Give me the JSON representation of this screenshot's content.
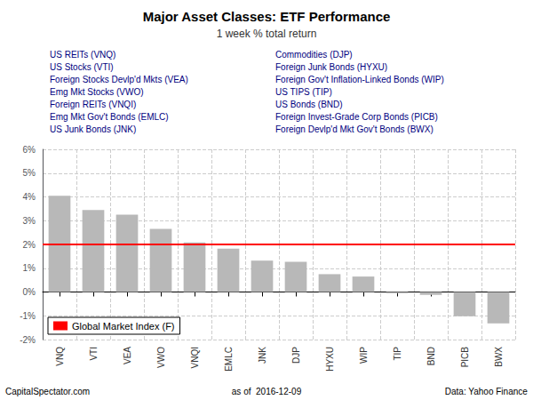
{
  "chart_data": {
    "type": "bar",
    "title": "Major Asset Classes: ETF Performance",
    "subtitle": "1 week % total return",
    "categories": [
      "VNQ",
      "VTI",
      "VEA",
      "VWO",
      "VNQI",
      "EMLC",
      "JNK",
      "DJP",
      "HYXU",
      "WIP",
      "TIP",
      "BND",
      "PICB",
      "BWX"
    ],
    "values": [
      4.05,
      3.45,
      3.25,
      2.65,
      2.08,
      1.82,
      1.32,
      1.27,
      0.75,
      0.65,
      -0.05,
      -0.12,
      -1.02,
      -1.32
    ],
    "color": "#b8b8b8",
    "reference_line": {
      "value": 2.0,
      "name": "Global Market Index (F)",
      "color": "#ff0000"
    },
    "legend": "lower left",
    "ylim": [
      -2,
      6
    ],
    "yticks": [
      {
        "value": -2,
        "label": "-2%"
      },
      {
        "value": -1,
        "label": "-1%"
      },
      {
        "value": 0,
        "label": "0%"
      },
      {
        "value": 1,
        "label": "1%"
      },
      {
        "value": 2,
        "label": "2%"
      },
      {
        "value": 3,
        "label": "3%"
      },
      {
        "value": 4,
        "label": "4%"
      },
      {
        "value": 5,
        "label": "5%"
      },
      {
        "value": 6,
        "label": "6%"
      }
    ],
    "grid": true,
    "annotation_columns": [
      [
        "US REITs (VNQ)",
        "US Stocks (VTI)",
        "Foreign Stocks Devlp'd Mkts (VEA)",
        "Emg Mkt Stocks (VWO)",
        "Foreign REITs (VNQI)",
        "Emg Mkt Gov't Bonds (EMLC)",
        "US Junk Bonds (JNK)"
      ],
      [
        "Commodities (DJP)",
        "Foreign Junk Bonds (HYXU)",
        "Foreign Gov't Inflation-Linked Bonds (WIP)",
        "US TIPS (TIP)",
        "US Bonds (BND)",
        "Foreign Invest-Grade Corp Bonds (PICB)",
        "Foreign Devlp'd Mkt Gov't Bonds (BWX)"
      ]
    ],
    "annotation_color": "#000080",
    "footer": [
      "CapitalSpectator.com",
      "as of  2016-12-09",
      "Data: Yahoo Finance"
    ]
  }
}
